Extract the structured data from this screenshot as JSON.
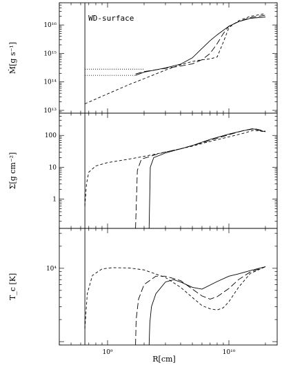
{
  "chart_data": [
    {
      "type": "line",
      "panel": "top",
      "ylabel": "Ṁ[g s⁻¹]",
      "yscale": "log",
      "xscale": "log",
      "xlim": [
        400000000,
        25000000000
      ],
      "ylim": [
        8000000000000,
        6e+16
      ],
      "yticks": [
        10000000000000.0,
        100000000000000.0,
        1000000000000000.0,
        1e+16
      ],
      "ytick_labels": [
        "10¹³",
        "10¹⁴",
        "10¹⁵",
        "10¹⁶"
      ],
      "annotation": "WD-surface",
      "wd_surface_x": 650000000,
      "series": [
        {
          "style": "solid",
          "x": [
            1700000000,
            2000000000,
            3000000000,
            4000000000,
            5000000000,
            6000000000,
            7000000000,
            8000000000,
            9000000000,
            10000000000,
            12000000000,
            15000000000,
            20000000000
          ],
          "values": [
            170000000000000,
            220000000000000,
            310000000000000,
            420000000000000,
            700000000000000,
            1500000000000000,
            2800000000000000,
            4500000000000000,
            6500000000000000,
            9000000000000000,
            13000000000000000,
            17000000000000000,
            19000000000000000
          ]
        },
        {
          "style": "long-dash",
          "x": [
            1700000000,
            2000000000,
            3000000000,
            4000000000,
            5000000000,
            6000000000,
            7000000000,
            8000000000,
            9000000000,
            10000000000,
            12000000000,
            15000000000,
            20000000000
          ],
          "values": [
            190000000000000,
            230000000000000,
            300000000000000,
            360000000000000,
            430000000000000,
            600000000000000,
            1000000000000000,
            2200000000000000,
            5000000000000000,
            9000000000000000,
            13000000000000000,
            18000000000000000,
            22000000000000000
          ]
        },
        {
          "style": "short-dash",
          "x": [
            650000000,
            800000000,
            1000000000,
            1500000000,
            2000000000,
            3000000000,
            4000000000,
            5000000000,
            6000000000,
            7000000000,
            8000000000,
            9000000000,
            10000000000,
            12000000000,
            15000000000,
            20000000000
          ],
          "values": [
            17000000000000,
            25000000000000,
            38000000000000,
            80000000000000,
            130000000000000,
            260000000000000,
            400000000000000,
            520000000000000,
            600000000000000,
            640000000000000,
            750000000000000,
            2500000000000000,
            8000000000000000,
            14000000000000000,
            20000000000000000,
            25000000000000000
          ]
        },
        {
          "style": "dotted",
          "x": [
            650000000,
            2000000000
          ],
          "values": [
            280000000000000,
            280000000000000
          ]
        },
        {
          "style": "dotted",
          "x": [
            650000000,
            1700000000
          ],
          "values": [
            170000000000000,
            170000000000000
          ]
        }
      ]
    },
    {
      "type": "line",
      "panel": "middle",
      "ylabel": "Σ[g cm⁻²]",
      "yscale": "log",
      "xscale": "log",
      "xlim": [
        400000000,
        25000000000
      ],
      "ylim": [
        0.12,
        500
      ],
      "yticks": [
        1,
        10,
        100
      ],
      "ytick_labels": [
        "1",
        "10",
        "100"
      ],
      "wd_surface_x": 650000000,
      "series": [
        {
          "style": "solid",
          "x": [
            2200000000,
            2250000000,
            2400000000,
            3000000000,
            4000000000,
            5000000000,
            7000000000,
            10000000000,
            13000000000,
            16000000000,
            20000000000
          ],
          "values": [
            0.12,
            10,
            20,
            28,
            38,
            48,
            75,
            110,
            140,
            160,
            130
          ]
        },
        {
          "style": "long-dash",
          "x": [
            1700000000,
            1760000000,
            1900000000,
            2500000000,
            3000000000,
            4000000000,
            5000000000,
            7000000000,
            10000000000,
            13000000000,
            16000000000,
            20000000000
          ],
          "values": [
            0.12,
            8,
            18,
            25,
            30,
            38,
            48,
            70,
            105,
            140,
            165,
            135
          ]
        },
        {
          "style": "short-dash",
          "x": [
            650000000,
            670000000,
            700000000,
            800000000,
            1000000000,
            1500000000,
            2000000000,
            3000000000,
            4000000000,
            5000000000,
            7000000000,
            10000000000,
            13000000000,
            16000000000,
            20000000000
          ],
          "values": [
            0.6,
            3,
            7,
            11,
            14,
            18,
            22,
            30,
            38,
            46,
            65,
            90,
            115,
            145,
            130
          ]
        }
      ]
    },
    {
      "type": "line",
      "panel": "bottom",
      "ylabel": "T_c [K]",
      "yscale": "log",
      "xscale": "log",
      "xlim": [
        400000000,
        25000000000
      ],
      "ylim": [
        900,
        35000
      ],
      "yticks": [
        10000
      ],
      "ytick_labels": [
        "10⁴"
      ],
      "xlabel": "R[cm]",
      "xticks": [
        1000000000,
        10000000000
      ],
      "xtick_labels": [
        "10⁹",
        "10¹⁰"
      ],
      "wd_surface_x": 650000000,
      "series": [
        {
          "style": "solid",
          "x": [
            2200000000,
            2230000000,
            2300000000,
            2500000000,
            3000000000,
            3500000000,
            4000000000,
            5000000000,
            6000000000,
            8000000000,
            10000000000,
            12000000000,
            15000000000,
            20000000000
          ],
          "values": [
            900,
            1800,
            3000,
            4500,
            6500,
            7000,
            6500,
            5500,
            5200,
            6600,
            7800,
            8400,
            9300,
            10500
          ]
        },
        {
          "style": "long-dash",
          "x": [
            1700000000,
            1720000000,
            1800000000,
            2000000000,
            2500000000,
            3000000000,
            4000000000,
            5000000000,
            6000000000,
            7000000000,
            8000000000,
            10000000000,
            12000000000,
            15000000000,
            20000000000
          ],
          "values": [
            900,
            2000,
            3800,
            6000,
            7800,
            7800,
            6800,
            5200,
            4200,
            3800,
            4100,
            5300,
            7000,
            8900,
            10500
          ]
        },
        {
          "style": "short-dash",
          "x": [
            650000000,
            680000000,
            750000000,
            900000000,
            1100000000,
            1500000000,
            2000000000,
            3000000000,
            4000000000,
            5000000000,
            6000000000,
            7000000000,
            8000000000,
            9000000000,
            10000000000,
            12000000000,
            15000000000,
            20000000000
          ],
          "values": [
            1500,
            4500,
            8000,
            9800,
            10200,
            10100,
            9500,
            7500,
            5500,
            4000,
            3100,
            2800,
            2700,
            2900,
            3500,
            5500,
            8500,
            10500
          ]
        }
      ]
    }
  ]
}
